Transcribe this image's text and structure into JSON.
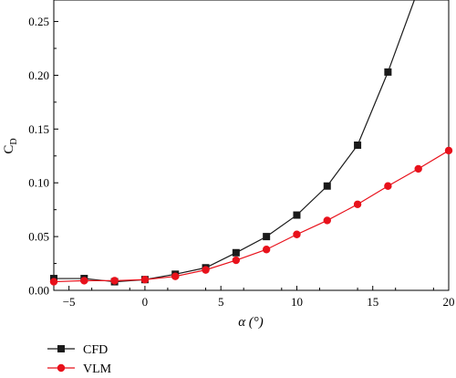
{
  "chart_data": {
    "type": "line",
    "xlabel": "α (°)",
    "ylabel_main": "C",
    "ylabel_sub": "D",
    "xlim": [
      -6,
      20
    ],
    "ylim": [
      0,
      0.27
    ],
    "xticks": [
      -5,
      0,
      5,
      10,
      15,
      20
    ],
    "xtick_labels": [
      "−5",
      "0",
      "5",
      "10",
      "15",
      "20"
    ],
    "yticks": [
      0.0,
      0.05,
      0.1,
      0.15,
      0.2,
      0.25
    ],
    "ytick_labels": [
      "0.00",
      "0.05",
      "0.10",
      "0.15",
      "0.20",
      "0.25"
    ],
    "grid": false,
    "legend_position": "below-left",
    "series": [
      {
        "name": "CFD",
        "color": "#1a1a1a",
        "marker": "square",
        "x": [
          -6,
          -4,
          -2,
          0,
          2,
          4,
          6,
          8,
          10,
          12,
          14,
          16,
          18
        ],
        "y": [
          0.011,
          0.011,
          0.008,
          0.01,
          0.015,
          0.021,
          0.035,
          0.05,
          0.07,
          0.097,
          0.135,
          0.203,
          0.28
        ]
      },
      {
        "name": "VLM",
        "color": "#e8111b",
        "marker": "circle",
        "x": [
          -6,
          -4,
          -2,
          0,
          2,
          4,
          6,
          8,
          10,
          12,
          14,
          16,
          18,
          20
        ],
        "y": [
          0.008,
          0.009,
          0.009,
          0.01,
          0.013,
          0.019,
          0.028,
          0.038,
          0.052,
          0.065,
          0.08,
          0.097,
          0.113,
          0.13
        ]
      }
    ]
  }
}
